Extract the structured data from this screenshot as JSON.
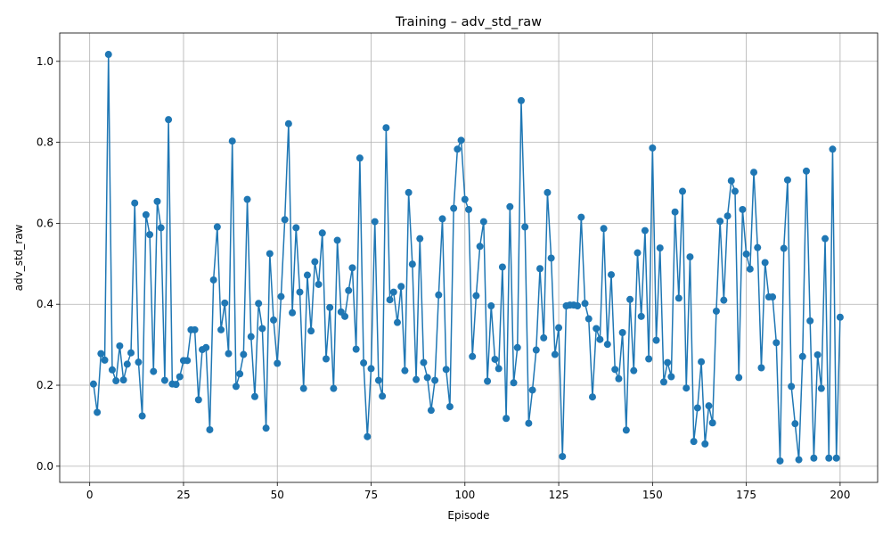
{
  "chart_data": {
    "type": "line",
    "title": "Training – adv_std_raw",
    "xlabel": "Episode",
    "ylabel": "adv_std_raw",
    "xlim": [
      -8,
      210
    ],
    "ylim": [
      -0.04,
      1.07
    ],
    "xticks": [
      0,
      25,
      50,
      75,
      100,
      125,
      150,
      175,
      200
    ],
    "yticks": [
      0.0,
      0.2,
      0.4,
      0.6,
      0.8,
      1.0
    ],
    "grid": true,
    "markers": true,
    "color": "#1f77b4",
    "series": [
      {
        "x": [
          1,
          2,
          3,
          4,
          5,
          6,
          7,
          8,
          9,
          10,
          11,
          12,
          13,
          14,
          15,
          16,
          17,
          18,
          19,
          20,
          21,
          22,
          23,
          24,
          25,
          26,
          27,
          28,
          29,
          30,
          31,
          32,
          33,
          34,
          35,
          36,
          37,
          38,
          39,
          40,
          41,
          42,
          43,
          44,
          45,
          46,
          47,
          48,
          49,
          50,
          51,
          52,
          53,
          54,
          55,
          56,
          57,
          58,
          59,
          60,
          61,
          62,
          63,
          64,
          65,
          66,
          67,
          68,
          69,
          70,
          71,
          72,
          73,
          74,
          75,
          76,
          77,
          78,
          79,
          80,
          81,
          82,
          83,
          84,
          85,
          86,
          87,
          88,
          89,
          90,
          91,
          92,
          93,
          94,
          95,
          96,
          97,
          98,
          99,
          100,
          101,
          102,
          103,
          104,
          105,
          106,
          107,
          108,
          109,
          110,
          111,
          112,
          113,
          114,
          115,
          116,
          117,
          118,
          119,
          120,
          121,
          122,
          123,
          124,
          125,
          126,
          127,
          128,
          129,
          130,
          131,
          132,
          133,
          134,
          135,
          136,
          137,
          138,
          139,
          140,
          141,
          142,
          143,
          144,
          145,
          146,
          147,
          148,
          149,
          150,
          151,
          152,
          153,
          154,
          155,
          156,
          157,
          158,
          159,
          160,
          161,
          162,
          163,
          164,
          165,
          166,
          167,
          168,
          169,
          170,
          171,
          172,
          173,
          174,
          175,
          176,
          177,
          178,
          179,
          180,
          181,
          182,
          183,
          184,
          185,
          186,
          187,
          188,
          189,
          190,
          191,
          192,
          193,
          194,
          195,
          196,
          197,
          198,
          199,
          200
        ],
        "y": [
          0.203,
          0.133,
          0.278,
          0.262,
          1.017,
          0.238,
          0.211,
          0.297,
          0.213,
          0.252,
          0.28,
          0.65,
          0.257,
          0.124,
          0.621,
          0.572,
          0.234,
          0.654,
          0.589,
          0.212,
          0.856,
          0.203,
          0.202,
          0.221,
          0.261,
          0.261,
          0.337,
          0.337,
          0.164,
          0.288,
          0.293,
          0.09,
          0.46,
          0.591,
          0.337,
          0.403,
          0.278,
          0.803,
          0.197,
          0.228,
          0.276,
          0.659,
          0.32,
          0.172,
          0.402,
          0.34,
          0.094,
          0.525,
          0.361,
          0.254,
          0.419,
          0.609,
          0.846,
          0.379,
          0.589,
          0.43,
          0.192,
          0.472,
          0.334,
          0.505,
          0.449,
          0.576,
          0.265,
          0.392,
          0.192,
          0.558,
          0.381,
          0.37,
          0.434,
          0.49,
          0.289,
          0.761,
          0.255,
          0.073,
          0.241,
          0.604,
          0.212,
          0.173,
          0.836,
          0.411,
          0.43,
          0.355,
          0.444,
          0.236,
          0.676,
          0.499,
          0.214,
          0.562,
          0.256,
          0.219,
          0.138,
          0.212,
          0.423,
          0.611,
          0.239,
          0.147,
          0.637,
          0.783,
          0.805,
          0.659,
          0.634,
          0.271,
          0.421,
          0.543,
          0.604,
          0.21,
          0.396,
          0.264,
          0.241,
          0.492,
          0.118,
          0.641,
          0.206,
          0.293,
          0.903,
          0.591,
          0.106,
          0.188,
          0.287,
          0.488,
          0.317,
          0.676,
          0.514,
          0.276,
          0.342,
          0.024,
          0.396,
          0.398,
          0.398,
          0.396,
          0.615,
          0.402,
          0.364,
          0.171,
          0.34,
          0.313,
          0.587,
          0.301,
          0.473,
          0.239,
          0.216,
          0.33,
          0.089,
          0.412,
          0.236,
          0.527,
          0.37,
          0.582,
          0.265,
          0.786,
          0.311,
          0.539,
          0.208,
          0.256,
          0.221,
          0.628,
          0.415,
          0.679,
          0.193,
          0.517,
          0.061,
          0.144,
          0.258,
          0.055,
          0.149,
          0.107,
          0.383,
          0.605,
          0.41,
          0.618,
          0.705,
          0.679,
          0.219,
          0.634,
          0.524,
          0.487,
          0.726,
          0.54,
          0.243,
          0.503,
          0.418,
          0.418,
          0.305,
          0.013,
          0.538,
          0.707,
          0.197,
          0.105,
          0.016,
          0.271,
          0.729,
          0.359,
          0.02,
          0.275,
          0.192,
          0.562,
          0.02,
          0.783,
          0.02,
          0.368
        ]
      }
    ]
  }
}
